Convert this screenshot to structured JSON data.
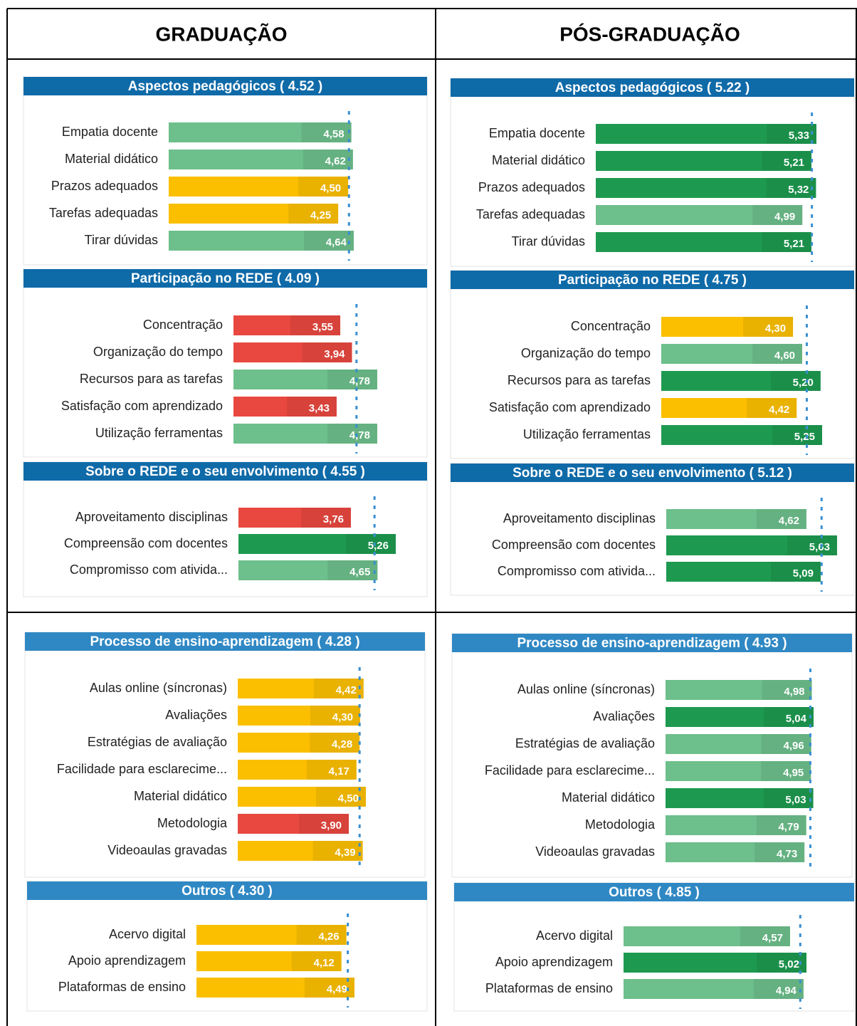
{
  "headers": [
    "GRADUAÇÃO",
    "PÓS-GRADUAÇÃO"
  ],
  "chart_data": [
    {
      "type": "bar",
      "title": "Aspectos pedagógicos ( 4.52 )",
      "average": 4.52,
      "categories": [
        "Empatia docente",
        "Material didático",
        "Prazos adequados",
        "Tarefas adequadas",
        "Tirar dúvidas"
      ],
      "values": [
        4.58,
        4.62,
        4.5,
        4.25,
        4.64
      ],
      "value_labels": [
        "4,58",
        "4,62",
        "4,50",
        "4,25",
        "4,64"
      ],
      "colors": [
        "#6dbf8b",
        "#6dbf8b",
        "#fbbf00",
        "#fbbf00",
        "#6dbf8b"
      ]
    },
    {
      "type": "bar",
      "title": "Aspectos pedagógicos ( 5.22 )",
      "average": 5.22,
      "categories": [
        "Empatia docente",
        "Material didático",
        "Prazos adequados",
        "Tarefas adequadas",
        "Tirar dúvidas"
      ],
      "values": [
        5.33,
        5.21,
        5.32,
        4.99,
        5.21
      ],
      "value_labels": [
        "5,33",
        "5,21",
        "5,32",
        "4,99",
        "5,21"
      ],
      "colors": [
        "#1e9a50",
        "#1e9a50",
        "#1e9a50",
        "#6dbf8b",
        "#1e9a50"
      ]
    },
    {
      "type": "bar",
      "title": "Participação no REDE ( 4.09 )",
      "average": 4.09,
      "categories": [
        "Concentração",
        "Organização do tempo",
        "Recursos para as tarefas",
        "Satisfação com aprendizado",
        "Utilização ferramentas"
      ],
      "values": [
        3.55,
        3.94,
        4.78,
        3.43,
        4.78
      ],
      "value_labels": [
        "3,55",
        "3,94",
        "4,78",
        "3,43",
        "4,78"
      ],
      "colors": [
        "#e8483f",
        "#e8483f",
        "#6dbf8b",
        "#e8483f",
        "#6dbf8b"
      ]
    },
    {
      "type": "bar",
      "title": "Participação no REDE ( 4.75 )",
      "average": 4.75,
      "categories": [
        "Concentração",
        "Organização do tempo",
        "Recursos para as tarefas",
        "Satisfação com aprendizado",
        "Utilização ferramentas"
      ],
      "values": [
        4.3,
        4.6,
        5.2,
        4.42,
        5.25
      ],
      "value_labels": [
        "4,30",
        "4,60",
        "5,20",
        "4,42",
        "5,25"
      ],
      "colors": [
        "#fbbf00",
        "#6dbf8b",
        "#1e9a50",
        "#fbbf00",
        "#1e9a50"
      ]
    },
    {
      "type": "bar",
      "title": "Sobre o REDE e o seu envolvimento ( 4.55 )",
      "average": 4.55,
      "categories": [
        "Aproveitamento disciplinas",
        "Compreensão com docentes",
        "Compromisso com ativida..."
      ],
      "values": [
        3.76,
        5.26,
        4.65
      ],
      "value_labels": [
        "3,76",
        "5,26",
        "4,65"
      ],
      "colors": [
        "#e8483f",
        "#1e9a50",
        "#6dbf8b"
      ]
    },
    {
      "type": "bar",
      "title": "Sobre o REDE e o seu envolvimento ( 5.12 )",
      "average": 5.12,
      "categories": [
        "Aproveitamento disciplinas",
        "Compreensão com docentes",
        "Compromisso com ativida..."
      ],
      "values": [
        4.62,
        5.63,
        5.09
      ],
      "value_labels": [
        "4,62",
        "5,63",
        "5,09"
      ],
      "colors": [
        "#6dbf8b",
        "#1e9a50",
        "#1e9a50"
      ]
    },
    {
      "type": "bar",
      "title": "Processo de ensino-aprendizagem ( 4.28 )",
      "average": 4.28,
      "categories": [
        "Aulas online (síncronas)",
        "Avaliações",
        "Estratégias de avaliação",
        "Facilidade para esclarecime...",
        "Material didático",
        "Metodologia",
        "Videoaulas gravadas"
      ],
      "values": [
        4.42,
        4.3,
        4.28,
        4.17,
        4.5,
        3.9,
        4.39
      ],
      "value_labels": [
        "4,42",
        "4,30",
        "4,28",
        "4,17",
        "4,50",
        "3,90",
        "4,39"
      ],
      "colors": [
        "#fbbf00",
        "#fbbf00",
        "#fbbf00",
        "#fbbf00",
        "#fbbf00",
        "#e8483f",
        "#fbbf00"
      ]
    },
    {
      "type": "bar",
      "title": "Processo de ensino-aprendizagem ( 4.93 )",
      "average": 4.93,
      "categories": [
        "Aulas online (síncronas)",
        "Avaliações",
        "Estratégias de avaliação",
        "Facilidade para esclarecime...",
        "Material didático",
        "Metodologia",
        "Videoaulas gravadas"
      ],
      "values": [
        4.98,
        5.04,
        4.96,
        4.95,
        5.03,
        4.79,
        4.73
      ],
      "value_labels": [
        "4,98",
        "5,04",
        "4,96",
        "4,95",
        "5,03",
        "4,79",
        "4,73"
      ],
      "colors": [
        "#6dbf8b",
        "#1e9a50",
        "#6dbf8b",
        "#6dbf8b",
        "#1e9a50",
        "#6dbf8b",
        "#6dbf8b"
      ]
    },
    {
      "type": "bar",
      "title": "Outros ( 4.30 )",
      "average": 4.3,
      "categories": [
        "Acervo digital",
        "Apoio aprendizagem",
        "Plataformas de ensino"
      ],
      "values": [
        4.26,
        4.12,
        4.49
      ],
      "value_labels": [
        "4,26",
        "4,12",
        "4,49"
      ],
      "colors": [
        "#fbbf00",
        "#fbbf00",
        "#fbbf00"
      ]
    },
    {
      "type": "bar",
      "title": "Outros ( 4.85 )",
      "average": 4.85,
      "categories": [
        "Acervo digital",
        "Apoio aprendizagem",
        "Plataformas de ensino"
      ],
      "values": [
        4.57,
        5.02,
        4.94
      ],
      "value_labels": [
        "4,57",
        "5,02",
        "4,94"
      ],
      "colors": [
        "#6dbf8b",
        "#1e9a50",
        "#6dbf8b"
      ]
    }
  ]
}
